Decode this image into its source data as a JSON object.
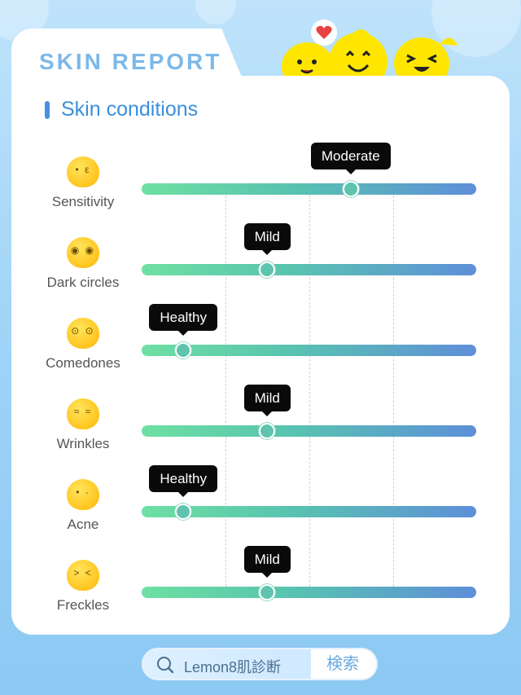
{
  "header": {
    "report_title": "SKIN REPORT",
    "section_title": "Skin conditions"
  },
  "conditions": [
    {
      "name": "Sensitivity",
      "level": "Moderate",
      "position": 0.625,
      "icon": "blush-face-icon"
    },
    {
      "name": "Dark circles",
      "level": "Mild",
      "position": 0.375,
      "icon": "tired-face-icon"
    },
    {
      "name": "Comedones",
      "level": "Healthy",
      "position": 0.125,
      "icon": "covering-face-icon"
    },
    {
      "name": "Wrinkles",
      "level": "Mild",
      "position": 0.375,
      "icon": "wrinkled-face-icon"
    },
    {
      "name": "Acne",
      "level": "Healthy",
      "position": 0.125,
      "icon": "pimple-face-icon"
    },
    {
      "name": "Freckles",
      "level": "Mild",
      "position": 0.375,
      "icon": "freckled-face-icon"
    }
  ],
  "search": {
    "query": "Lemon8肌診断",
    "button_label": "検索"
  },
  "colors": {
    "accent": "#3b8fdc",
    "track_start": "#6fe0a2",
    "track_end": "#5e8fd9",
    "mascot": "#ffe600"
  }
}
